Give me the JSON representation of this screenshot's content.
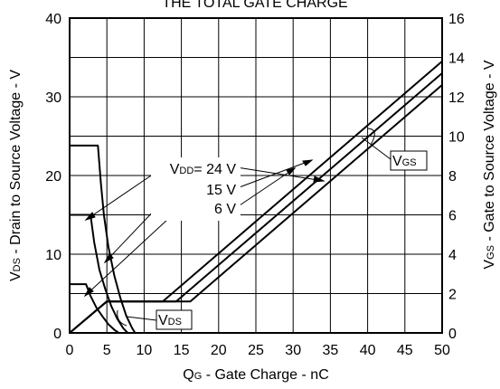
{
  "chart_data": {
    "type": "line",
    "title_fragment": "THE TOTAL GATE CHARGE",
    "xlabel": {
      "main": "Q",
      "sub": "G",
      "rest": " -  Gate Charge - nC"
    },
    "ylabel_left": {
      "main": "V",
      "sub": "DS",
      "rest": " -  Drain to Source Voltage - V"
    },
    "ylabel_right": {
      "main": "V",
      "sub": "GS",
      "rest": " - Gate to Source Voltage - V"
    },
    "xlim": [
      0,
      50
    ],
    "ylim_left": [
      0,
      40
    ],
    "ylim_right": [
      0,
      16
    ],
    "x_ticks": [
      0,
      5,
      10,
      15,
      20,
      25,
      30,
      35,
      40,
      45,
      50
    ],
    "y_ticks_left": [
      0,
      10,
      20,
      30,
      40
    ],
    "y_ticks_right": [
      0,
      2,
      4,
      6,
      8,
      10,
      12,
      14,
      16
    ],
    "grid": true,
    "series": [
      {
        "axis": "left",
        "points": [
          [
            0,
            23.8
          ],
          [
            3.8,
            23.8
          ],
          [
            4.2,
            19
          ],
          [
            4.6,
            15
          ],
          [
            5.2,
            11
          ],
          [
            6,
            7.3
          ],
          [
            6.8,
            4.5
          ],
          [
            7.6,
            2.2
          ],
          [
            8.4,
            0.6
          ],
          [
            8.8,
            0
          ]
        ]
      },
      {
        "axis": "left",
        "points": [
          [
            0,
            15
          ],
          [
            2.8,
            15
          ],
          [
            3.3,
            11.5
          ],
          [
            4,
            8
          ],
          [
            4.8,
            5.5
          ],
          [
            5.6,
            3.4
          ],
          [
            6.4,
            1.8
          ],
          [
            7.2,
            0.6
          ],
          [
            7.8,
            0
          ]
        ]
      },
      {
        "axis": "left",
        "points": [
          [
            0,
            6.2
          ],
          [
            2.2,
            6.2
          ],
          [
            2.8,
            4.7
          ],
          [
            3.6,
            3.2
          ],
          [
            4.4,
            2.1
          ],
          [
            5.2,
            1.1
          ],
          [
            6,
            0.4
          ],
          [
            6.6,
            0
          ]
        ]
      },
      {
        "axis": "right",
        "points": [
          [
            0,
            0
          ],
          [
            5,
            1.6
          ],
          [
            12.5,
            1.6
          ],
          [
            50,
            13.8
          ]
        ]
      },
      {
        "axis": "right",
        "points": [
          [
            0,
            0
          ],
          [
            5,
            1.6
          ],
          [
            14.3,
            1.6
          ],
          [
            50,
            13.2
          ]
        ]
      },
      {
        "axis": "right",
        "points": [
          [
            0,
            0
          ],
          [
            5,
            1.6
          ],
          [
            16.2,
            1.6
          ],
          [
            50,
            12.6
          ]
        ]
      }
    ],
    "annotations": {
      "vdd_prefix": "V",
      "vdd_sub": "DD",
      "vdd_24": "= 24 V",
      "vdd_15": "15 V",
      "vdd_6": "6 V",
      "vgs_main": "V",
      "vgs_sub": "GS",
      "vds_main": "V",
      "vds_sub": "DS"
    }
  }
}
